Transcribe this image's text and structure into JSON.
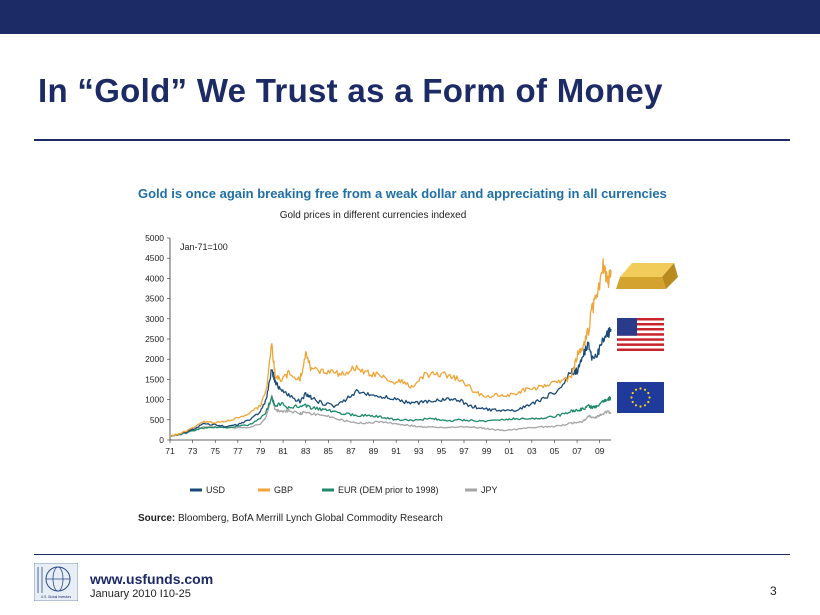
{
  "slide": {
    "title": "In “Gold” We Trust as a Form of Money",
    "website": "www.usfunds.com",
    "date_code": "January 2010 I10-25",
    "page_number": "3",
    "logo_text": "U.S. Global Investors"
  },
  "colors": {
    "navy": "#1c2a66",
    "usd": "#1a4a78",
    "gbp": "#f0a536",
    "eur": "#1f8a6a",
    "jpy": "#a6a6a6",
    "gold": "#c89a2a"
  },
  "icons": [
    "gold-bar-icon",
    "us-flag-icon",
    "eu-flag-icon"
  ],
  "source": {
    "label": "Source:",
    "text": "Bloomberg,  BofA Merrill Lynch Global Commodity Research"
  },
  "chart_data": {
    "type": "line",
    "title": "Gold is once again breaking free from a weak dollar and appreciating in all currencies",
    "subtitle": "Gold prices in different currencies indexed",
    "annotation": "Jan-71=100",
    "xlabel": "",
    "ylabel": "",
    "xlim": [
      1971,
      2010
    ],
    "ylim": [
      0,
      5000
    ],
    "y_ticks": [
      0,
      500,
      1000,
      1500,
      2000,
      2500,
      3000,
      3500,
      4000,
      4500,
      5000
    ],
    "x_tick_labels": [
      "71",
      "73",
      "75",
      "77",
      "79",
      "81",
      "83",
      "85",
      "87",
      "89",
      "91",
      "93",
      "95",
      "97",
      "99",
      "01",
      "03",
      "05",
      "07",
      "09"
    ],
    "grid": false,
    "legend_position": "bottom",
    "series": [
      {
        "name": "USD",
        "x": [
          1971,
          1972,
          1973,
          1974,
          1975,
          1976,
          1977,
          1978,
          1979,
          1979.5,
          1980.0,
          1980.3,
          1980.8,
          1981.5,
          1982.5,
          1983.0,
          1983.5,
          1984.5,
          1985.5,
          1986.5,
          1987.5,
          1988.5,
          1989.5,
          1990.5,
          1991.5,
          1992.5,
          1993.5,
          1994.5,
          1995.5,
          1996.5,
          1997.5,
          1998.5,
          1999.5,
          2000.5,
          2001.5,
          2002.5,
          2003.5,
          2004.5,
          2005.5,
          2006.5,
          2007.0,
          2007.5,
          2008.0,
          2008.3,
          2008.8,
          2009.3,
          2009.7,
          2010.0
        ],
        "y": [
          100,
          160,
          260,
          400,
          380,
          330,
          380,
          500,
          700,
          1000,
          1750,
          1450,
          1250,
          1100,
          950,
          1150,
          1050,
          900,
          850,
          1000,
          1200,
          1150,
          1050,
          1050,
          950,
          900,
          950,
          1000,
          1000,
          1000,
          850,
          780,
          750,
          730,
          720,
          850,
          950,
          1100,
          1250,
          1700,
          1700,
          2100,
          2350,
          2000,
          2100,
          2500,
          2600,
          2750
        ]
      },
      {
        "name": "GBP",
        "x": [
          1971,
          1972,
          1973,
          1974,
          1975,
          1976,
          1977,
          1978,
          1979,
          1979.5,
          1980.0,
          1980.3,
          1980.8,
          1981.5,
          1982.5,
          1983.0,
          1983.5,
          1984.5,
          1985.5,
          1986.5,
          1987.5,
          1988.5,
          1989.5,
          1990.5,
          1991.5,
          1992.5,
          1993.5,
          1994.5,
          1995.5,
          1996.5,
          1997.5,
          1998.5,
          1999.5,
          2000.5,
          2001.5,
          2002.5,
          2003.5,
          2004.5,
          2005.5,
          2006.5,
          2007.0,
          2007.5,
          2008.0,
          2008.3,
          2008.8,
          2009.3,
          2009.7,
          2010.0
        ],
        "y": [
          100,
          170,
          300,
          450,
          430,
          470,
          550,
          650,
          850,
          1200,
          2350,
          1600,
          1500,
          1650,
          1500,
          2100,
          1750,
          1700,
          1650,
          1650,
          1800,
          1650,
          1600,
          1450,
          1450,
          1300,
          1600,
          1650,
          1600,
          1500,
          1300,
          1100,
          1100,
          1100,
          1150,
          1250,
          1300,
          1400,
          1450,
          1550,
          2100,
          2300,
          2700,
          3200,
          3600,
          4400,
          3900,
          4200
        ]
      },
      {
        "name": "EUR (DEM prior to 1998)",
        "x": [
          1971,
          1972,
          1973,
          1974,
          1975,
          1976,
          1977,
          1978,
          1979,
          1979.5,
          1980.0,
          1980.3,
          1980.8,
          1981.5,
          1982.5,
          1983.0,
          1983.5,
          1984.5,
          1985.5,
          1986.5,
          1987.5,
          1988.5,
          1989.5,
          1990.5,
          1991.5,
          1992.5,
          1993.5,
          1994.5,
          1995.5,
          1996.5,
          1997.5,
          1998.5,
          1999.5,
          2000.5,
          2001.5,
          2002.5,
          2003.5,
          2004.5,
          2005.5,
          2006.5,
          2007.0,
          2007.5,
          2008.0,
          2008.3,
          2008.8,
          2009.3,
          2009.7,
          2010.0
        ],
        "y": [
          100,
          150,
          230,
          300,
          320,
          310,
          340,
          380,
          520,
          700,
          1050,
          850,
          900,
          800,
          850,
          850,
          800,
          750,
          700,
          650,
          600,
          620,
          580,
          520,
          500,
          480,
          520,
          520,
          470,
          500,
          480,
          470,
          470,
          520,
          520,
          520,
          540,
          560,
          620,
          720,
          740,
          760,
          850,
          800,
          850,
          950,
          1000,
          1050
        ]
      },
      {
        "name": "JPY",
        "x": [
          1971,
          1972,
          1973,
          1974,
          1975,
          1976,
          1977,
          1978,
          1979,
          1979.5,
          1980.0,
          1980.3,
          1980.8,
          1981.5,
          1982.5,
          1983.0,
          1983.5,
          1984.5,
          1985.5,
          1986.5,
          1987.5,
          1988.5,
          1989.5,
          1990.5,
          1991.5,
          1992.5,
          1993.5,
          1994.5,
          1995.5,
          1996.5,
          1997.5,
          1998.5,
          1999.5,
          2000.5,
          2001.5,
          2002.5,
          2003.5,
          2004.5,
          2005.5,
          2006.5,
          2007.0,
          2007.5,
          2008.0,
          2008.3,
          2008.8,
          2009.3,
          2009.7,
          2010.0
        ],
        "y": [
          100,
          140,
          220,
          330,
          320,
          300,
          310,
          300,
          400,
          550,
          1100,
          750,
          700,
          720,
          650,
          700,
          650,
          620,
          550,
          480,
          430,
          420,
          450,
          420,
          380,
          350,
          320,
          320,
          300,
          330,
          330,
          300,
          260,
          240,
          260,
          300,
          320,
          330,
          350,
          420,
          430,
          450,
          600,
          550,
          580,
          650,
          700,
          680
        ]
      }
    ]
  }
}
